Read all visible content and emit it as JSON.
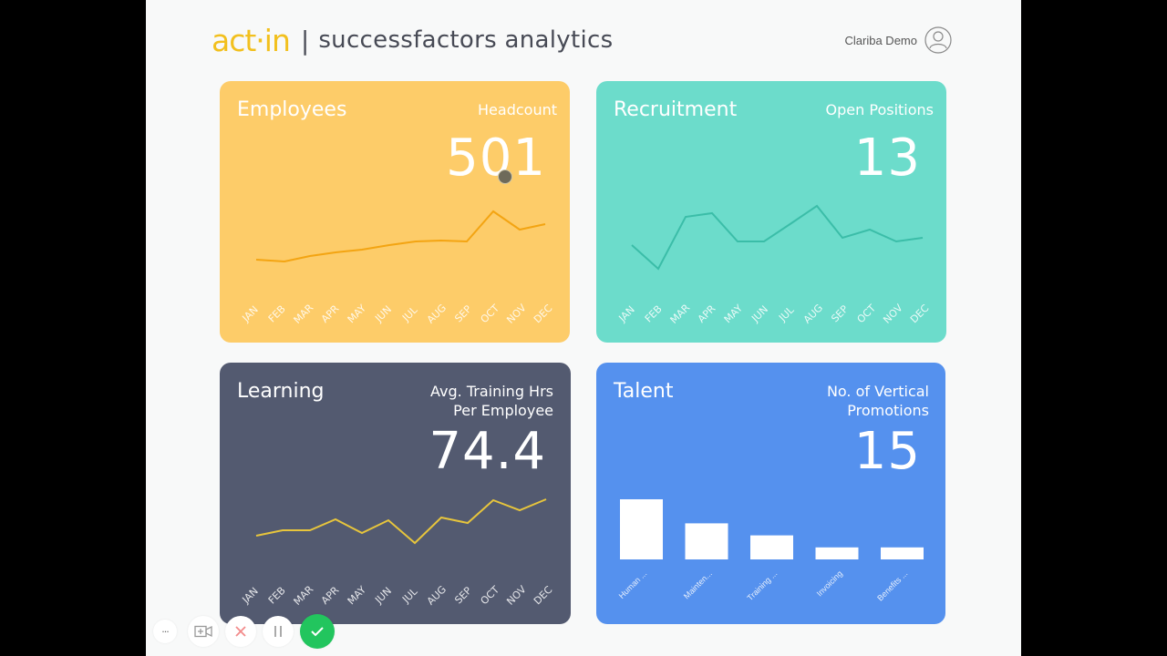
{
  "header": {
    "logo": "act·in",
    "separator": "|",
    "app_title": "successfactors analytics",
    "user_name": "Clariba Demo",
    "avatar_icon": "user-circle-icon"
  },
  "colors": {
    "page_bg": "#f8f9f9",
    "logo": "#f2c01e",
    "employees_card": "#fdcc69",
    "employees_line": "#f3a412",
    "recruitment_card": "#6cdccb",
    "recruitment_line": "#3bbda8",
    "learning_card": "#535a70",
    "learning_line": "#e7c53c",
    "talent_card": "#5591ee",
    "talent_bars": "#ffffff",
    "confirm_button": "#22c55e",
    "cancel_icon": "#f28b8b"
  },
  "cards": {
    "employees": {
      "title": "Employees",
      "metric_label": "Headcount",
      "metric_value": "501"
    },
    "recruitment": {
      "title": "Recruitment",
      "metric_label": "Open Positions",
      "metric_value": "13"
    },
    "learning": {
      "title": "Learning",
      "metric_label_line1": "Avg. Training Hrs",
      "metric_label_line2": "Per Employee",
      "metric_value": "74.4"
    },
    "talent": {
      "title": "Talent",
      "metric_label_line1": "No. of Vertical",
      "metric_label_line2": "Promotions",
      "metric_value": "15"
    }
  },
  "months": [
    "JAN",
    "FEB",
    "MAR",
    "APR",
    "MAY",
    "JUN",
    "JUL",
    "AUG",
    "SEP",
    "OCT",
    "NOV",
    "DEC"
  ],
  "chart_data": [
    {
      "type": "line",
      "title": "Employees - Headcount",
      "categories": [
        "JAN",
        "FEB",
        "MAR",
        "APR",
        "MAY",
        "JUN",
        "JUL",
        "AUG",
        "SEP",
        "OCT",
        "NOV",
        "DEC"
      ],
      "values": [
        440,
        437,
        445,
        450,
        454,
        460,
        466,
        468,
        466,
        511,
        484,
        492
      ],
      "note": "relative trend estimated from line; no y-axis shown",
      "grid": false
    },
    {
      "type": "line",
      "title": "Recruitment - Open Positions",
      "categories": [
        "JAN",
        "FEB",
        "MAR",
        "APR",
        "MAY",
        "JUN",
        "JUL",
        "AUG",
        "SEP",
        "OCT",
        "NOV",
        "DEC"
      ],
      "values": [
        11,
        8,
        15,
        15.5,
        12,
        12,
        14,
        16,
        12,
        13,
        12,
        12.5
      ],
      "note": "relative trend estimated from line; no y-axis shown",
      "grid": false
    },
    {
      "type": "line",
      "title": "Learning - Avg. Training Hrs Per Employee",
      "categories": [
        "JAN",
        "FEB",
        "MAR",
        "APR",
        "MAY",
        "JUN",
        "JUL",
        "AUG",
        "SEP",
        "OCT",
        "NOV",
        "DEC"
      ],
      "values": [
        62,
        64,
        64,
        68,
        63,
        68,
        59,
        69,
        67,
        76,
        72,
        76
      ],
      "note": "relative trend estimated from line; no y-axis shown",
      "grid": false
    },
    {
      "type": "bar",
      "title": "Talent - No. of Vertical Promotions",
      "categories": [
        "Human ...",
        "Mainten...",
        "Training ...",
        "Invoicing",
        "Benefits ..."
      ],
      "values": [
        5,
        3,
        2,
        1,
        1
      ],
      "grid": false
    }
  ],
  "toolbar": {
    "more_label": "···",
    "buttons": [
      "more-options",
      "add-video",
      "cancel",
      "pause",
      "confirm"
    ]
  }
}
